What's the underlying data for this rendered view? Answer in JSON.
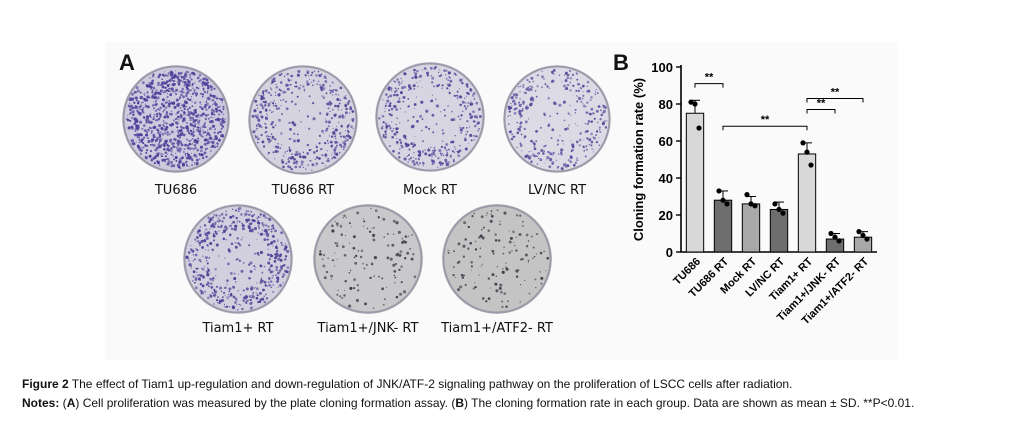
{
  "panel_a": {
    "letter": "A",
    "plates": [
      {
        "label": "TU686",
        "density": 1.0,
        "color": "#4a3f9a",
        "bg": "#cfcadd"
      },
      {
        "label": "TU686 RT",
        "density": 0.55,
        "color": "#4e4598",
        "bg": "#d6d3e0"
      },
      {
        "label": "Mock RT",
        "density": 0.5,
        "color": "#4e4598",
        "bg": "#d8d5e2"
      },
      {
        "label": "LV/NC RT",
        "density": 0.45,
        "color": "#544b9c",
        "bg": "#dcdae4"
      },
      {
        "label": "Tiam1+ RT",
        "density": 0.7,
        "color": "#4a4096",
        "bg": "#d2cfde"
      },
      {
        "label": "Tiam1+/JNK- RT",
        "density": 0.08,
        "color": "#3d3d48",
        "bg": "#c9c9cb"
      },
      {
        "label": "Tiam1+/ATF2- RT",
        "density": 0.08,
        "color": "#3d3d48",
        "bg": "#c4c4c5"
      }
    ]
  },
  "panel_b": {
    "letter": "B"
  },
  "chart_data": {
    "type": "bar",
    "ylabel": "Cloning formation rate (%)",
    "xlabel": "",
    "ylim": [
      0,
      100
    ],
    "yticks": [
      "0",
      "20",
      "40",
      "60",
      "80",
      "100"
    ],
    "categories": [
      "TU686",
      "TU686 RT",
      "Mock RT",
      "LV/NC RT",
      "Tiam1+ RT",
      "Tiam1+/JNK- RT",
      "Tiam1+/ATF2- RT"
    ],
    "values": [
      75,
      28,
      26,
      23,
      53,
      7,
      8
    ],
    "errors": [
      7,
      5,
      4,
      4,
      6,
      3,
      3
    ],
    "points": [
      [
        81,
        80,
        67
      ],
      [
        33,
        28,
        26
      ],
      [
        31,
        26,
        25
      ],
      [
        26,
        23,
        21
      ],
      [
        59,
        54,
        47
      ],
      [
        10,
        8,
        6
      ],
      [
        11,
        9,
        7
      ]
    ],
    "bar_colors": [
      "#d8d8d8",
      "#6e6e6e",
      "#a9a9a9",
      "#6e6e6e",
      "#d8d8d8",
      "#6e6e6e",
      "#a9a9a9"
    ],
    "significance": [
      {
        "from": 0,
        "to": 1,
        "label": "**",
        "y": 91
      },
      {
        "from": 1,
        "to": 4,
        "label": "**",
        "y": 68
      },
      {
        "from": 4,
        "to": 5,
        "label": "**",
        "y": 77
      },
      {
        "from": 4,
        "to": 6,
        "label": "**",
        "y": 83
      }
    ]
  },
  "caption": {
    "figure_label": "Figure 2",
    "figure_text": " The effect of Tiam1 up-regulation and down-regulation of JNK/ATF-2 signaling pathway on the proliferation of LSCC cells after radiation.",
    "notes_label": "Notes:",
    "notes_part1": " (",
    "notes_a": "A",
    "notes_part2": ") Cell proliferation was measured by the plate cloning formation assay. (",
    "notes_b": "B",
    "notes_part3": ") The cloning formation rate in each group. Data are shown as mean ± SD. **P<0.01."
  }
}
